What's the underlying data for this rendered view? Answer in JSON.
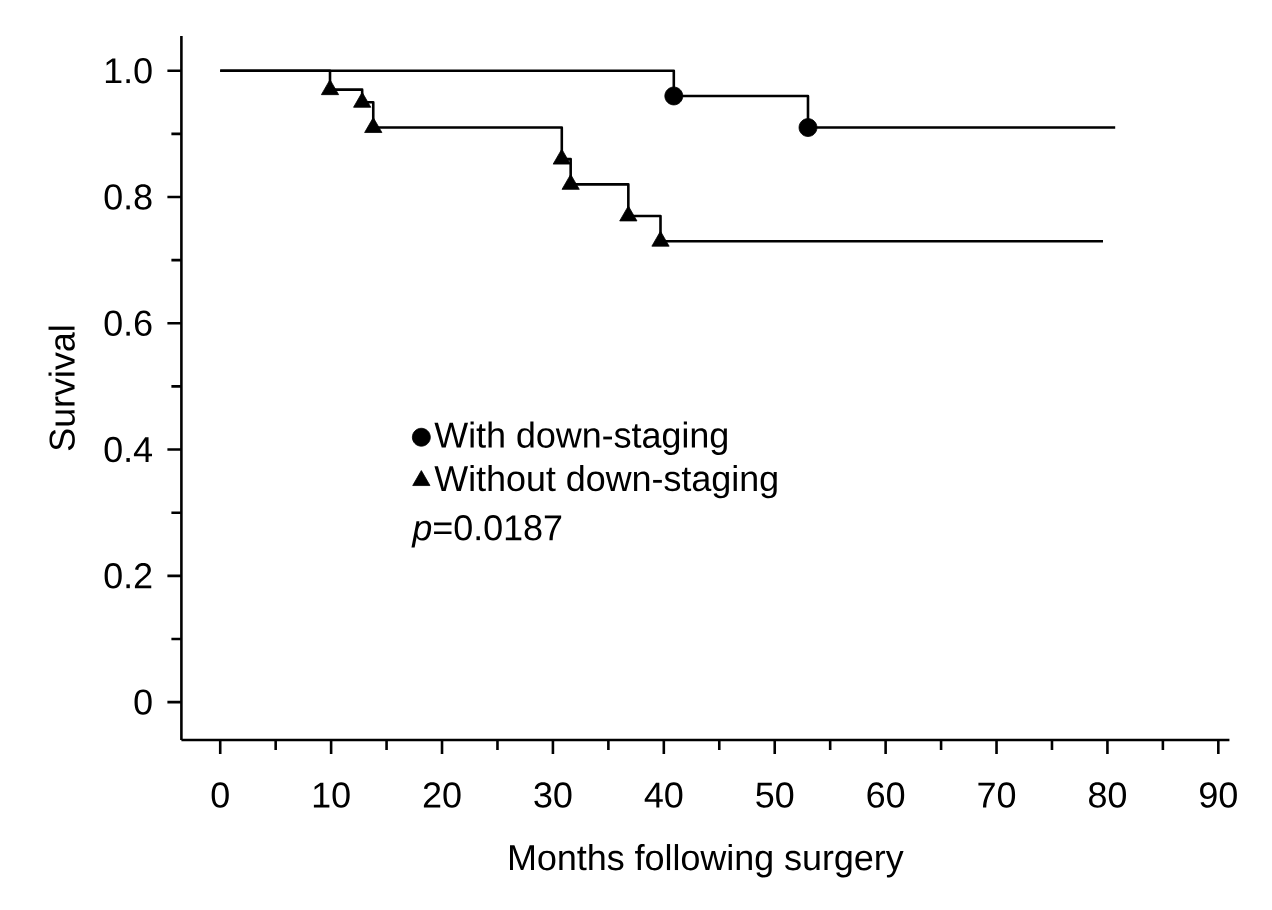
{
  "chart_data": {
    "type": "step",
    "xlabel": "Months following surgery",
    "ylabel": "Survival",
    "xlim": [
      -3.5,
      91
    ],
    "ylim": [
      -0.06,
      1.055
    ],
    "xticks": [
      0,
      10,
      20,
      30,
      40,
      50,
      60,
      70,
      80,
      90
    ],
    "yticks": [
      {
        "value": 0,
        "label": "0"
      },
      {
        "value": 0.2,
        "label": "0.2"
      },
      {
        "value": 0.4,
        "label": "0.4"
      },
      {
        "value": 0.6,
        "label": "0.6"
      },
      {
        "value": 0.8,
        "label": "0.8"
      },
      {
        "value": 1,
        "label": "1.0"
      }
    ],
    "grid": false,
    "legend": "center left",
    "annotations": [
      "*p*=0.0187"
    ],
    "series": [
      {
        "color": "#000000",
        "x": [
          0,
          40.9,
          53.0,
          80.7
        ],
        "values": [
          1,
          0.96,
          0.91,
          0.91
        ]
      },
      {
        "color": "#000000",
        "x": [
          0,
          9.9,
          12.8,
          13.8,
          30.8,
          31.6,
          36.8,
          39.7,
          79.6
        ],
        "values": [
          1,
          0.97,
          0.95,
          0.91,
          0.86,
          0.82,
          0.77,
          0.73,
          0.73
        ]
      },
      {
        "type": "scatter",
        "name": "With down-staging",
        "marker": "circle",
        "color": "#000000",
        "x": [
          40.9,
          53.0
        ],
        "values": [
          0.96,
          0.91
        ]
      },
      {
        "type": "scatter",
        "name": "Without down-staging",
        "marker": "triangle",
        "color": "#000000",
        "x": [
          9.9,
          12.8,
          13.8,
          30.8,
          31.6,
          36.8,
          39.7
        ],
        "values": [
          0.97,
          0.95,
          0.91,
          0.86,
          0.82,
          0.77,
          0.73
        ]
      }
    ]
  }
}
